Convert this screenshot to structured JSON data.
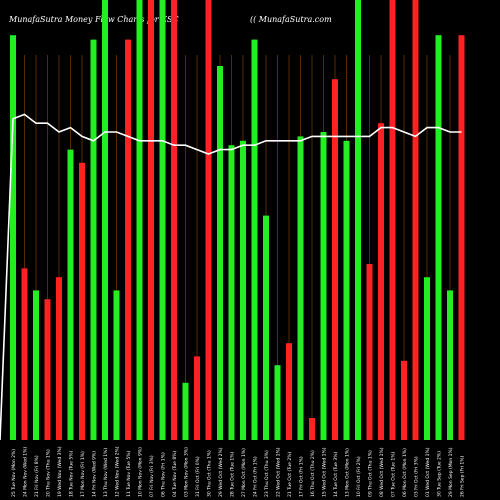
{
  "header": {
    "title": "MunafaSutra  Money Flow  Charts for ESC",
    "site": "(( MunafaSutra.com"
  },
  "colors": {
    "background": "#000000",
    "up": "#22ee22",
    "down": "#ff2222",
    "line": "#ffffff",
    "grid": "#8a4a00",
    "text": "#ffffff"
  },
  "chart_data": {
    "type": "bar",
    "title": "MunafaSutra  Money Flow  Charts for ESC",
    "ylim": [
      0,
      100
    ],
    "grid": "vertical",
    "categories": [
      "25 Tue Nov",
      "24 Mon Nov",
      "21 Fri Nov",
      "20 Thu Nov",
      "19 Wed Nov",
      "18 Tue Nov",
      "17 Mon Nov",
      "14 Fri Nov",
      "13 Thu Nov",
      "12 Wed Nov",
      "11 Tue Nov",
      "10 Mon Nov",
      "07 Fri Nov",
      "06 Thu Nov",
      "04 Tue Nov",
      "03 Mon Nov",
      "31 Fri Oct",
      "30 Thu Oct",
      "29 Wed Oct",
      "28 Tue Oct",
      "27 Mon Oct",
      "24 Fri Oct",
      "23 Thu Oct",
      "22 Wed Oct",
      "21 Tue Oct",
      "17 Fri Oct",
      "16 Thu Oct",
      "15 Wed Oct",
      "14 Tue Oct",
      "13 Mon Oct",
      "10 Fri Oct",
      "09 Thu Oct",
      "08 Wed Oct",
      "07 Tue Oct",
      "06 Mon Oct",
      "03 Fri Oct",
      "01 Wed Oct",
      "30 Tue Sep",
      "29 Mon Sep",
      "26 Fri Sep"
    ],
    "series": [
      {
        "values": [
          92,
          39,
          34,
          32,
          37,
          66,
          63,
          91,
          100,
          34,
          91,
          100,
          100,
          100,
          100,
          13,
          19,
          100,
          85,
          67,
          68,
          91,
          51,
          17,
          22,
          69,
          5,
          70,
          82,
          68,
          100,
          40,
          72,
          100,
          18,
          100,
          37,
          92,
          34,
          92
        ]
      },
      {
        "values": [
          73,
          74,
          72,
          72,
          70,
          71,
          69,
          68,
          70,
          70,
          69,
          68,
          68,
          68,
          67,
          67,
          66,
          65,
          66,
          66,
          67,
          67,
          68,
          68,
          68,
          68,
          69,
          69,
          69,
          69,
          69,
          69,
          71,
          71,
          70,
          69,
          71,
          71,
          70,
          70
        ]
      }
    ],
    "directions": [
      "up",
      "down",
      "up",
      "down",
      "down",
      "up",
      "down",
      "up",
      "up",
      "up",
      "down",
      "up",
      "down",
      "up",
      "down",
      "up",
      "down",
      "down",
      "up",
      "up",
      "up",
      "up",
      "up",
      "up",
      "down",
      "up",
      "down",
      "up",
      "down",
      "up",
      "up",
      "down",
      "down",
      "down",
      "down",
      "down",
      "up",
      "up",
      "up",
      "down"
    ],
    "x_tick_labels": [
      "25 Tue Nov (Mon 2%)",
      "24 Mon Nov (Wed 1%)",
      "21 Fri Nov (Fri 8%)",
      "20 Thu Nov (Thu 1%)",
      "19 Wed Nov (Wed 3%)",
      "18 Tue Nov (Tue 5%)",
      "17 Mon Nov (Fri 1%)",
      "14 Fri Nov (Wed 9%)",
      "13 Thu Nov (Wed 1%)",
      "12 Wed Nov (Wed 2%)",
      "11 Tue Nov (Tue 5%)",
      "10 Mon Nov (Mon 9%)",
      "07 Fri Nov (Fri 3%)",
      "06 Thu Nov (Fri 1%)",
      "04 Tue Nov (Tue 8%)",
      "03 Mon Nov (Mon 3%)",
      "31 Fri Oct (Fri 0%)",
      "30 Thu Oct (Thu 1%)",
      "29 Wed Oct (Wed 2%)",
      "28 Tue Oct (Tue 1%)",
      "27 Mon Oct (Mon 1%)",
      "24 Fri Oct (Fri 1%)",
      "23 Thu Oct (Thu 3%)",
      "22 Wed Oct (Wed 1%)",
      "21 Tue Oct (Tue 2%)",
      "17 Fri Oct (Fri 1%)",
      "16 Thu Oct (Thu 2%)",
      "15 Wed Oct (Wed 1%)",
      "14 Tue Oct (Tue 3%)",
      "13 Mon Oct (Mon 1%)",
      "10 Fri Oct (Fri 2%)",
      "09 Thu Oct (Thu 1%)",
      "08 Wed Oct (Wed 1%)",
      "07 Tue Oct (Tue 1%)",
      "06 Mon Oct (Mon 1%)",
      "03 Fri Oct (Fri 3%)",
      "01 Wed Oct (Wed 1%)",
      "30 Tue Sep (Tue 2%)",
      "29 Mon Sep (Mon 1%)",
      "26 Fri Sep (Fri 1%)"
    ]
  }
}
